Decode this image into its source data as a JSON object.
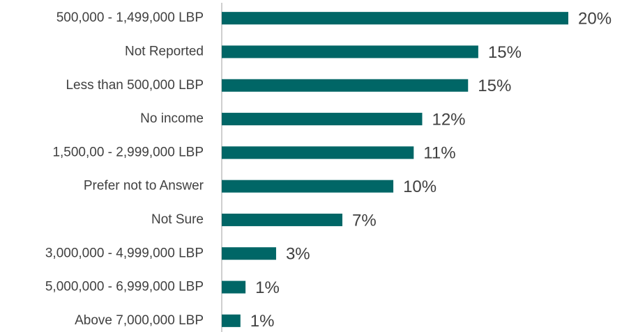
{
  "chart_data": {
    "type": "hbar",
    "categories": [
      "500,000 - 1,499,000 LBP",
      "Not Reported",
      "Less than 500,000 LBP",
      "No income",
      "1,500,00 - 2,999,000 LBP",
      "Prefer not to Answer",
      "Not Sure",
      "3,000,000 - 4,999,000 LBP",
      "5,000,000 - 6,999,000 LBP",
      "Above 7,000,000 LBP"
    ],
    "values": [
      20.4,
      15.1,
      14.5,
      11.8,
      11.3,
      10.1,
      7.1,
      3.2,
      1.4,
      1.1
    ],
    "value_labels": [
      "20%",
      "15%",
      "15%",
      "12%",
      "11%",
      "10%",
      "7%",
      "3%",
      "1%",
      "1%"
    ],
    "color": "#006666",
    "xlim": [
      0,
      20.4
    ]
  }
}
